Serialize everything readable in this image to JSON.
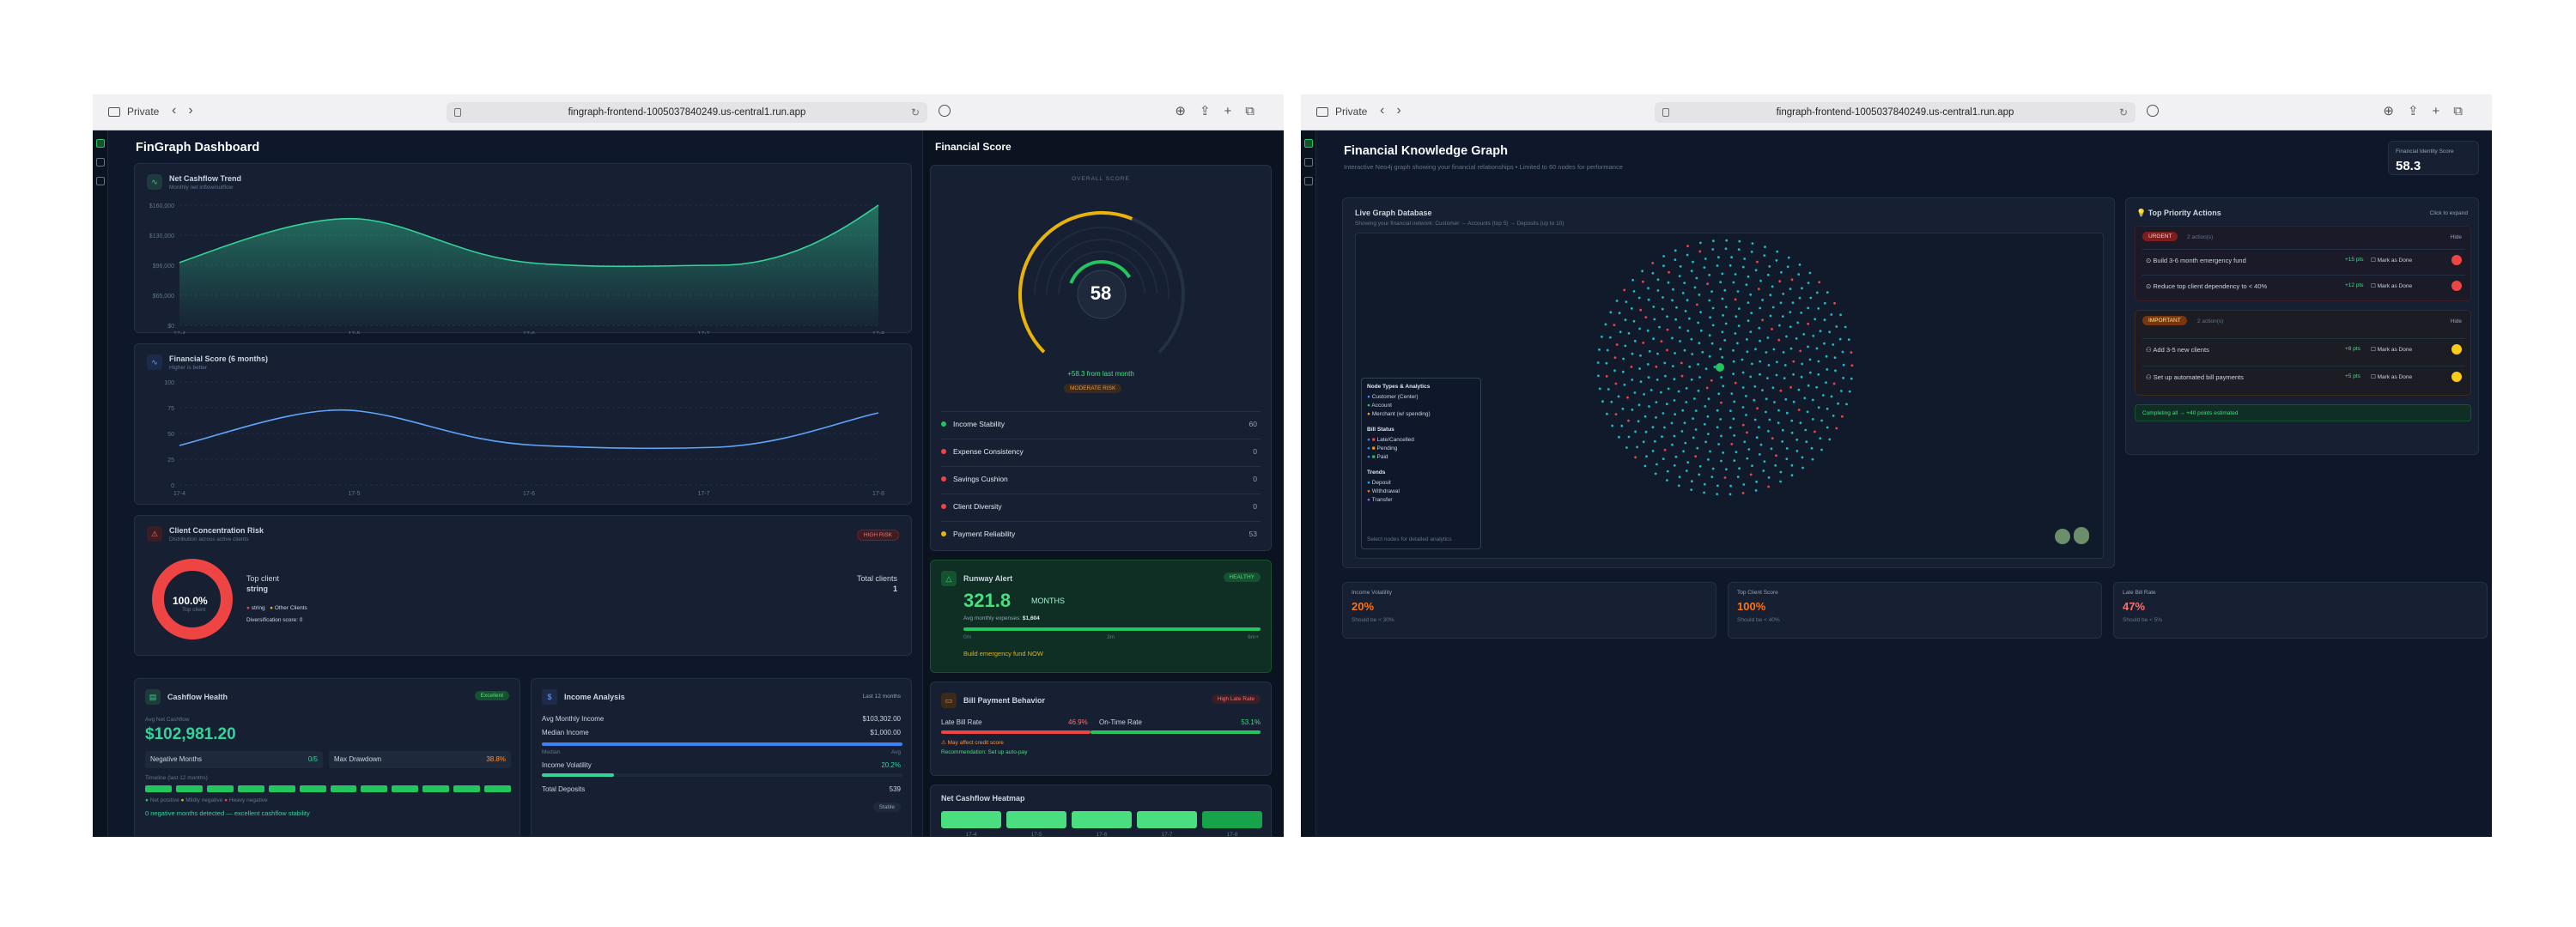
{
  "browser": {
    "mode": "Private",
    "url": "fingraph-frontend-1005037840249.us-central1.run.app"
  },
  "dashboard": {
    "title": "FinGraph Dashboard",
    "net_cashflow": {
      "title": "Net Cashflow Trend",
      "subtitle": "Monthly net inflow/outflow",
      "y_ticks": [
        "$160,000",
        "$130,000",
        "$96,000",
        "$65,000",
        "$0"
      ],
      "x_ticks": [
        "17-4",
        "17-5",
        "17-6",
        "17-7",
        "17-8"
      ]
    },
    "financial_score_chart": {
      "title": "Financial Score (6 months)",
      "subtitle": "Higher is better",
      "y_ticks": [
        "100",
        "75",
        "50",
        "25",
        "0"
      ],
      "x_ticks": [
        "17-4",
        "17-5",
        "17-6",
        "17-7",
        "17-8"
      ]
    },
    "concentration": {
      "title": "Client Concentration Risk",
      "subtitle": "Distribution across active clients",
      "badge": "HIGH RISK",
      "pct": "100.0%",
      "pct_label": "Top client",
      "top_client_label": "Top client",
      "top_client": "string",
      "total_clients_label": "Total clients",
      "total_clients": "1",
      "legend": [
        "string",
        "Other Clients"
      ],
      "diversification": "Diversification score:",
      "diversification_value": "0"
    },
    "cashflow_health": {
      "title": "Cashflow Health",
      "badge": "Excellent",
      "avg_label": "Avg Net Cashflow",
      "avg": "$102,981.20",
      "neg_label": "Negative Months",
      "neg": "0/5",
      "dd_label": "Max Drawdown",
      "dd": "38.8%",
      "timeline": "Timeline (last 12 months)",
      "legend": [
        "Net positive",
        "Mildly negative",
        "Heavy negative"
      ],
      "note": "0 negative months detected — excellent cashflow stability"
    },
    "income": {
      "title": "Income Analysis",
      "period": "Last 12 months",
      "rows": [
        {
          "k": "Avg Monthly Income",
          "v": "$103,302.00"
        },
        {
          "k": "Median Income",
          "v": "$1,000.00"
        }
      ],
      "median_left": "Median",
      "median_right": "Avg",
      "vol_label": "Income Volatility",
      "vol": "20.2%",
      "dep_label": "Total Deposits",
      "dep": "539",
      "stable": "Stable"
    }
  },
  "score_panel": {
    "title": "Financial Score",
    "overall": "OVERALL SCORE",
    "score": "58",
    "delta": "+58.3 from last month",
    "risk": "MODERATE RISK",
    "factors": [
      {
        "label": "Income Stability",
        "value": "60",
        "color": "#22c55e"
      },
      {
        "label": "Expense Consistency",
        "value": "0",
        "color": "#ef4444"
      },
      {
        "label": "Savings Cushion",
        "value": "0",
        "color": "#ef4444"
      },
      {
        "label": "Client Diversity",
        "value": "0",
        "color": "#ef4444"
      },
      {
        "label": "Payment Reliability",
        "value": "53",
        "color": "#eab308"
      }
    ],
    "runway": {
      "title": "Runway Alert",
      "badge": "HEALTHY",
      "value": "321.8",
      "unit": "MONTHS",
      "avg_label": "Avg monthly expenses:",
      "avg": "$1,604",
      "ticks": [
        "0m",
        "3m",
        "6m+"
      ],
      "action": "Build emergency fund NOW"
    },
    "bill": {
      "title": "Bill Payment Behavior",
      "badge": "High Late Rate",
      "late_label": "Late Bill Rate",
      "late": "46.9%",
      "ontime_label": "On-Time Rate",
      "ontime": "53.1%",
      "note": "May affect credit score",
      "rec": "Recommendation: Set up auto-pay"
    },
    "heatmap": {
      "title": "Net Cashflow Heatmap",
      "labels": [
        "17-4",
        "17-5",
        "17-6",
        "17-7",
        "17-8"
      ]
    }
  },
  "graph_page": {
    "title": "Financial Knowledge Graph",
    "subtitle": "Interactive Neo4j graph showing your financial relationships • Limited to 60 nodes for performance",
    "identity_label": "Financial Identity Score",
    "identity": "58.3",
    "live_title": "Live Graph Database",
    "live_sub": "Showing your financial network: Customer → Accounts (top 5) → Deposits (up to 10)",
    "legend": {
      "node_types": "Node Types & Analytics",
      "types": [
        "Customer (Center)",
        "Account",
        "Merchant (w/ spending)"
      ],
      "bill_status": "Bill Status",
      "bills": [
        "Late/Cancelled",
        "Pending",
        "Paid"
      ],
      "trends": "Trends",
      "trend_items": [
        "Deposit",
        "Withdrawal",
        "Transfer"
      ],
      "hint": "Select nodes for detailed analytics"
    },
    "actions": {
      "title": "Top Priority Actions",
      "expand": "Click to expand",
      "urgent": "URGENT",
      "urgent_count": "2 action(s)",
      "hide": "Hide",
      "important": "IMPORTANT",
      "important_count": "2 action(s)",
      "mark": "Mark as Done",
      "items": [
        {
          "text": "Build 3-6 month emergency fund",
          "pts": "+15 pts"
        },
        {
          "text": "Reduce top client dependency to < 40%",
          "pts": "+12 pts"
        },
        {
          "text": "Add 3-5 new clients",
          "pts": "+8 pts"
        },
        {
          "text": "Set up automated bill payments",
          "pts": "+5 pts"
        }
      ],
      "footer": "Completing all → +40 points estimated"
    },
    "metrics": [
      {
        "label": "Income Volatility",
        "value": "20%",
        "sub": "Should be < 30%",
        "color": "#f97316"
      },
      {
        "label": "Top Client Score",
        "value": "100%",
        "sub": "Should be < 40%",
        "color": "#f97316"
      },
      {
        "label": "Late Bill Rate",
        "value": "47%",
        "sub": "Should be < 5%",
        "color": "#f87171"
      }
    ]
  }
}
